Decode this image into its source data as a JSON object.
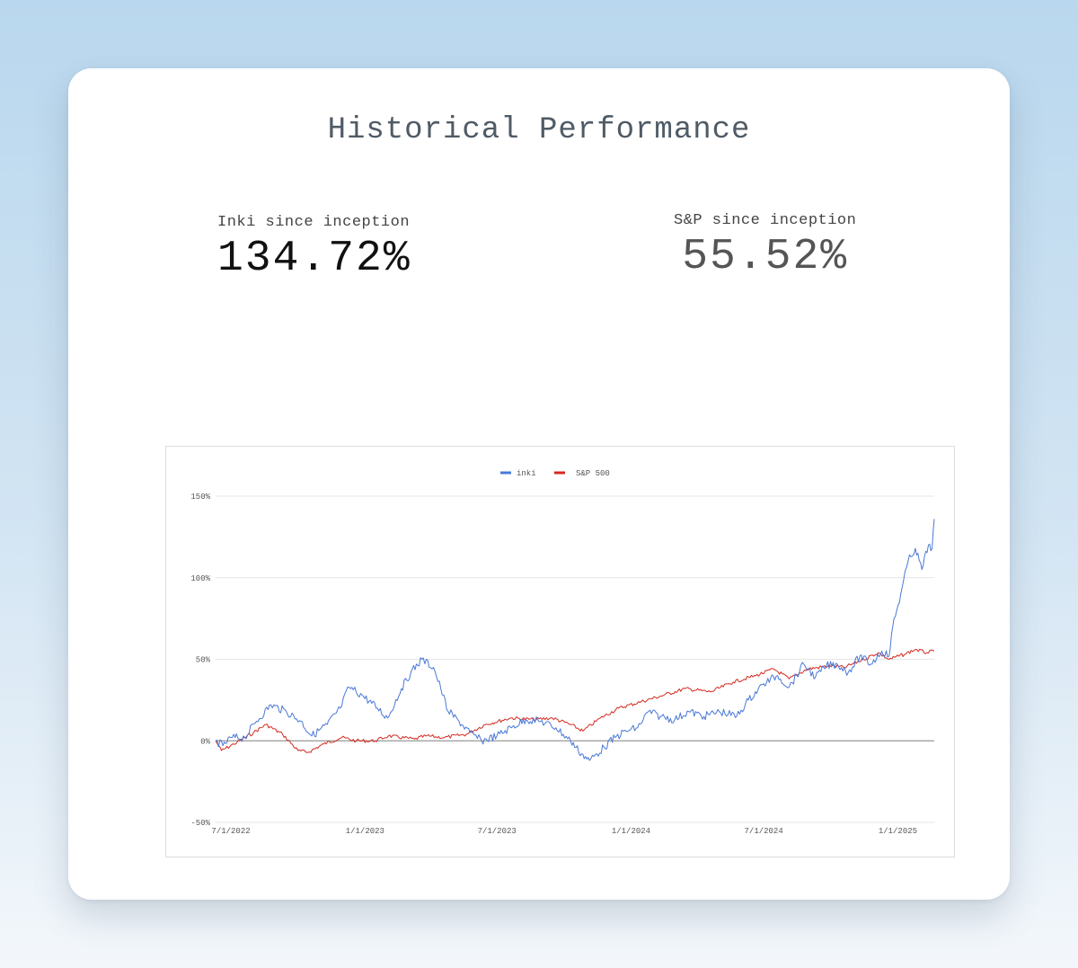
{
  "page": {
    "title": "Historical Performance"
  },
  "stats": [
    {
      "label": "Inki since inception",
      "value": "134.72%"
    },
    {
      "label": "S&P since inception",
      "value": "55.52%"
    }
  ],
  "colors": {
    "inki": "#4a78d6",
    "sp500": "#d42a20",
    "zero_line": "#999999",
    "grid": "#e6e6e6"
  },
  "chart_data": {
    "type": "line",
    "x_start": "2022-06-10",
    "xlim": [
      "2022-06-10",
      "2025-02-20"
    ],
    "ylim": [
      -50,
      150
    ],
    "y_ticks": [
      150,
      100,
      50,
      0,
      -50
    ],
    "y_tick_labels": [
      "150%",
      "100%",
      "50%",
      "0%",
      "-50%"
    ],
    "x_ticks": [
      "2022-07-01",
      "2023-01-01",
      "2023-07-01",
      "2024-01-01",
      "2024-07-01",
      "2025-01-01"
    ],
    "x_tick_labels": [
      "7/1/2022",
      "1/1/2023",
      "7/1/2023",
      "1/1/2024",
      "7/1/2024",
      "1/1/2025"
    ],
    "grid": true,
    "legend": "top-center",
    "series": [
      {
        "name": "inki",
        "color": "#4a78d6",
        "points": [
          [
            "2022-06-10",
            0
          ],
          [
            "2022-06-20",
            -3
          ],
          [
            "2022-07-01",
            2
          ],
          [
            "2022-07-20",
            2
          ],
          [
            "2022-08-05",
            12
          ],
          [
            "2022-08-25",
            22
          ],
          [
            "2022-09-15",
            18
          ],
          [
            "2022-10-05",
            12
          ],
          [
            "2022-10-20",
            3
          ],
          [
            "2022-11-10",
            10
          ],
          [
            "2022-11-28",
            20
          ],
          [
            "2022-12-10",
            33
          ],
          [
            "2022-12-28",
            28
          ],
          [
            "2023-01-18",
            20
          ],
          [
            "2023-02-01",
            14
          ],
          [
            "2023-02-20",
            32
          ],
          [
            "2023-03-05",
            42
          ],
          [
            "2023-03-20",
            50
          ],
          [
            "2023-04-05",
            45
          ],
          [
            "2023-04-15",
            32
          ],
          [
            "2023-04-25",
            18
          ],
          [
            "2023-05-10",
            12
          ],
          [
            "2023-05-25",
            5
          ],
          [
            "2023-06-10",
            0
          ],
          [
            "2023-07-01",
            3
          ],
          [
            "2023-07-20",
            8
          ],
          [
            "2023-08-10",
            13
          ],
          [
            "2023-08-30",
            12
          ],
          [
            "2023-09-20",
            8
          ],
          [
            "2023-10-10",
            0
          ],
          [
            "2023-10-25",
            -8
          ],
          [
            "2023-11-05",
            -12
          ],
          [
            "2023-11-25",
            -4
          ],
          [
            "2023-12-10",
            2
          ],
          [
            "2023-12-25",
            6
          ],
          [
            "2024-01-10",
            8
          ],
          [
            "2024-01-25",
            18
          ],
          [
            "2024-02-10",
            15
          ],
          [
            "2024-03-01",
            13
          ],
          [
            "2024-03-20",
            18
          ],
          [
            "2024-04-10",
            15
          ],
          [
            "2024-05-01",
            18
          ],
          [
            "2024-05-25",
            15
          ],
          [
            "2024-06-10",
            25
          ],
          [
            "2024-07-01",
            35
          ],
          [
            "2024-07-20",
            40
          ],
          [
            "2024-08-05",
            33
          ],
          [
            "2024-08-25",
            47
          ],
          [
            "2024-09-10",
            39
          ],
          [
            "2024-09-25",
            46
          ],
          [
            "2024-10-10",
            47
          ],
          [
            "2024-10-25",
            42
          ],
          [
            "2024-11-10",
            52
          ],
          [
            "2024-11-25",
            47
          ],
          [
            "2024-12-10",
            55
          ],
          [
            "2024-12-20",
            52
          ],
          [
            "2024-12-25",
            70
          ],
          [
            "2025-01-05",
            90
          ],
          [
            "2025-01-15",
            110
          ],
          [
            "2025-01-25",
            118
          ],
          [
            "2025-02-03",
            105
          ],
          [
            "2025-02-12",
            120
          ],
          [
            "2025-02-17",
            118
          ],
          [
            "2025-02-20",
            136
          ]
        ]
      },
      {
        "name": "S&P 500",
        "color": "#d42a20",
        "points": [
          [
            "2022-06-10",
            0
          ],
          [
            "2022-06-18",
            -6
          ],
          [
            "2022-07-05",
            -2
          ],
          [
            "2022-08-01",
            5
          ],
          [
            "2022-08-18",
            10
          ],
          [
            "2022-09-10",
            4
          ],
          [
            "2022-10-01",
            -6
          ],
          [
            "2022-10-15",
            -7
          ],
          [
            "2022-11-05",
            -2
          ],
          [
            "2022-11-30",
            2
          ],
          [
            "2022-12-20",
            0
          ],
          [
            "2023-01-15",
            0
          ],
          [
            "2023-02-02",
            3
          ],
          [
            "2023-03-10",
            1
          ],
          [
            "2023-03-25",
            3
          ],
          [
            "2023-04-20",
            2
          ],
          [
            "2023-05-20",
            4
          ],
          [
            "2023-06-15",
            10
          ],
          [
            "2023-07-20",
            14
          ],
          [
            "2023-08-20",
            13
          ],
          [
            "2023-09-15",
            14
          ],
          [
            "2023-10-10",
            10
          ],
          [
            "2023-10-27",
            6
          ],
          [
            "2023-11-20",
            14
          ],
          [
            "2023-12-15",
            20
          ],
          [
            "2024-01-15",
            24
          ],
          [
            "2024-02-15",
            28
          ],
          [
            "2024-03-15",
            32
          ],
          [
            "2024-04-19",
            30
          ],
          [
            "2024-05-20",
            36
          ],
          [
            "2024-06-20",
            40
          ],
          [
            "2024-07-15",
            44
          ],
          [
            "2024-08-05",
            38
          ],
          [
            "2024-08-30",
            44
          ],
          [
            "2024-09-30",
            46
          ],
          [
            "2024-10-20",
            45
          ],
          [
            "2024-11-15",
            50
          ],
          [
            "2024-12-05",
            54
          ],
          [
            "2024-12-20",
            50
          ],
          [
            "2025-01-10",
            53
          ],
          [
            "2025-01-25",
            56
          ],
          [
            "2025-02-10",
            54
          ],
          [
            "2025-02-20",
            55
          ]
        ]
      }
    ]
  }
}
